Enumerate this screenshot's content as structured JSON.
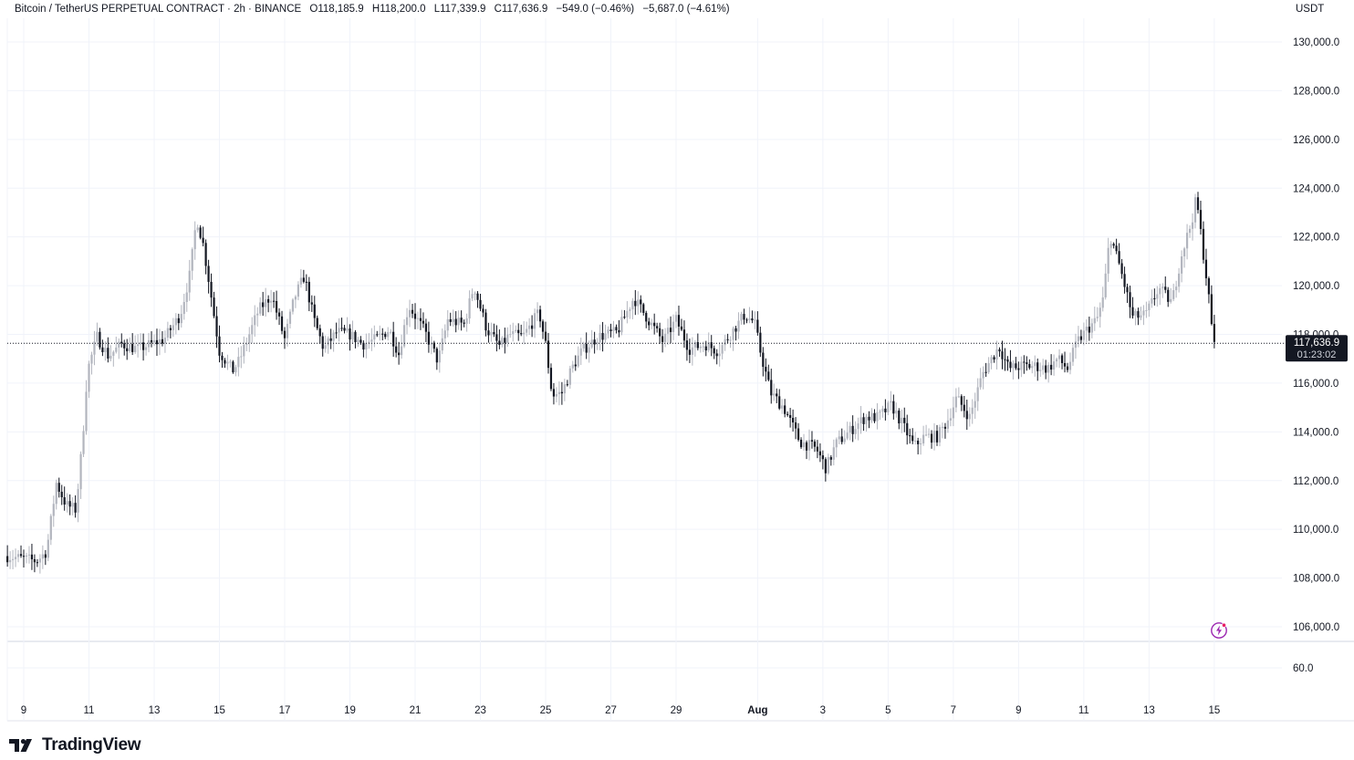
{
  "header": {
    "symbol": "Bitcoin / TetherUS PERPETUAL CONTRACT · 2h · BINANCE",
    "open": "O118,185.9",
    "high": "H118,200.0",
    "low": "L117,339.9",
    "close": "C117,636.9",
    "change": "−549.0 (−0.46%)",
    "change2": "−5,687.0 (−4.61%)"
  },
  "currency": "USDT",
  "logo_text": "TradingView",
  "icons": {
    "logo": "tradingview-logo-icon",
    "alert": "lightning-alert-icon"
  },
  "colors": {
    "up": "#b2b5be",
    "down": "#131722",
    "last_price_bg": "#131722",
    "grid": "#f0f3fa"
  },
  "chart_data": {
    "type": "candlestick",
    "title": "Bitcoin / TetherUS PERPETUAL CONTRACT · 2h · BINANCE",
    "ylim": [
      104500,
      131000
    ],
    "y_ticks": [
      106000,
      108000,
      110000,
      112000,
      114000,
      116000,
      118000,
      120000,
      122000,
      124000,
      126000,
      128000,
      130000
    ],
    "y_tick_labels": [
      "106,000.0",
      "108,000.0",
      "110,000.0",
      "112,000.0",
      "114,000.0",
      "116,000.0",
      "118,000.0",
      "120,000.0",
      "122,000.0",
      "124,000.0",
      "126,000.0",
      "128,000.0",
      "130,000.0"
    ],
    "x_labels": [
      "9",
      "11",
      "13",
      "15",
      "17",
      "19",
      "21",
      "23",
      "25",
      "27",
      "29",
      "Aug",
      "3",
      "5",
      "7",
      "9",
      "11",
      "13",
      "15"
    ],
    "x_label_days": [
      0,
      2,
      4,
      6,
      8,
      10,
      12,
      14,
      16,
      18,
      20,
      22.5,
      24.5,
      26.5,
      28.5,
      30.5,
      32.5,
      34.5,
      36.5
    ],
    "last_price": 117636.9,
    "last_price_label": "117,636.9",
    "countdown": "01:23:02",
    "volume_pane_label": "60.0",
    "anchors": [
      [
        -0.5,
        108900
      ],
      [
        0.4,
        108700
      ],
      [
        0.7,
        109100
      ],
      [
        1.0,
        111900
      ],
      [
        1.3,
        111000
      ],
      [
        1.6,
        110800
      ],
      [
        1.8,
        113600
      ],
      [
        1.95,
        116500
      ],
      [
        2.25,
        117900
      ],
      [
        2.6,
        117100
      ],
      [
        3.0,
        117600
      ],
      [
        3.5,
        117400
      ],
      [
        4.3,
        117800
      ],
      [
        4.8,
        118800
      ],
      [
        5.1,
        120500
      ],
      [
        5.3,
        122800
      ],
      [
        5.5,
        121700
      ],
      [
        5.7,
        120000
      ],
      [
        6.0,
        117300
      ],
      [
        6.4,
        116500
      ],
      [
        6.6,
        116900
      ],
      [
        6.8,
        117600
      ],
      [
        7.2,
        119000
      ],
      [
        7.6,
        119600
      ],
      [
        8.0,
        117800
      ],
      [
        8.3,
        119500
      ],
      [
        8.6,
        120400
      ],
      [
        8.9,
        118600
      ],
      [
        9.2,
        117400
      ],
      [
        9.6,
        118100
      ],
      [
        10.0,
        118000
      ],
      [
        10.4,
        117600
      ],
      [
        10.8,
        117800
      ],
      [
        11.2,
        118200
      ],
      [
        11.5,
        117200
      ],
      [
        11.8,
        119200
      ],
      [
        12.3,
        118100
      ],
      [
        12.7,
        116900
      ],
      [
        13.0,
        118600
      ],
      [
        13.5,
        118400
      ],
      [
        13.8,
        120000
      ],
      [
        14.2,
        118200
      ],
      [
        14.6,
        117500
      ],
      [
        14.9,
        118000
      ],
      [
        15.3,
        117900
      ],
      [
        15.8,
        118900
      ],
      [
        16.0,
        117600
      ],
      [
        16.2,
        115500
      ],
      [
        16.5,
        115600
      ],
      [
        16.8,
        116600
      ],
      [
        17.1,
        117300
      ],
      [
        17.6,
        117900
      ],
      [
        18.2,
        118100
      ],
      [
        18.7,
        119500
      ],
      [
        19.2,
        118500
      ],
      [
        19.6,
        117700
      ],
      [
        20.0,
        118600
      ],
      [
        20.4,
        117400
      ],
      [
        20.9,
        117600
      ],
      [
        21.3,
        117300
      ],
      [
        21.6,
        117900
      ],
      [
        22.1,
        118800
      ],
      [
        22.4,
        118500
      ],
      [
        22.6,
        117200
      ],
      [
        22.9,
        115600
      ],
      [
        23.3,
        115000
      ],
      [
        23.8,
        113600
      ],
      [
        24.3,
        113300
      ],
      [
        24.6,
        112500
      ],
      [
        24.9,
        113500
      ],
      [
        25.3,
        114000
      ],
      [
        25.8,
        114600
      ],
      [
        26.2,
        114600
      ],
      [
        26.6,
        115100
      ],
      [
        26.9,
        114400
      ],
      [
        27.3,
        113400
      ],
      [
        27.6,
        113800
      ],
      [
        28.0,
        113800
      ],
      [
        28.3,
        114400
      ],
      [
        28.6,
        115400
      ],
      [
        29.0,
        114600
      ],
      [
        29.4,
        116400
      ],
      [
        29.9,
        117500
      ],
      [
        30.2,
        116600
      ],
      [
        30.6,
        116700
      ],
      [
        31.0,
        116700
      ],
      [
        31.4,
        116600
      ],
      [
        31.7,
        117000
      ],
      [
        32.0,
        116600
      ],
      [
        32.3,
        117700
      ],
      [
        32.6,
        118200
      ],
      [
        32.9,
        118600
      ],
      [
        33.1,
        119500
      ],
      [
        33.3,
        122100
      ],
      [
        33.6,
        120800
      ],
      [
        34.0,
        118700
      ],
      [
        34.4,
        118800
      ],
      [
        34.8,
        119900
      ],
      [
        35.2,
        119300
      ],
      [
        35.5,
        121300
      ],
      [
        35.8,
        122600
      ],
      [
        35.95,
        123600
      ],
      [
        36.1,
        122000
      ],
      [
        36.3,
        119900
      ],
      [
        36.45,
        117900
      ],
      [
        36.55,
        117640
      ]
    ]
  }
}
